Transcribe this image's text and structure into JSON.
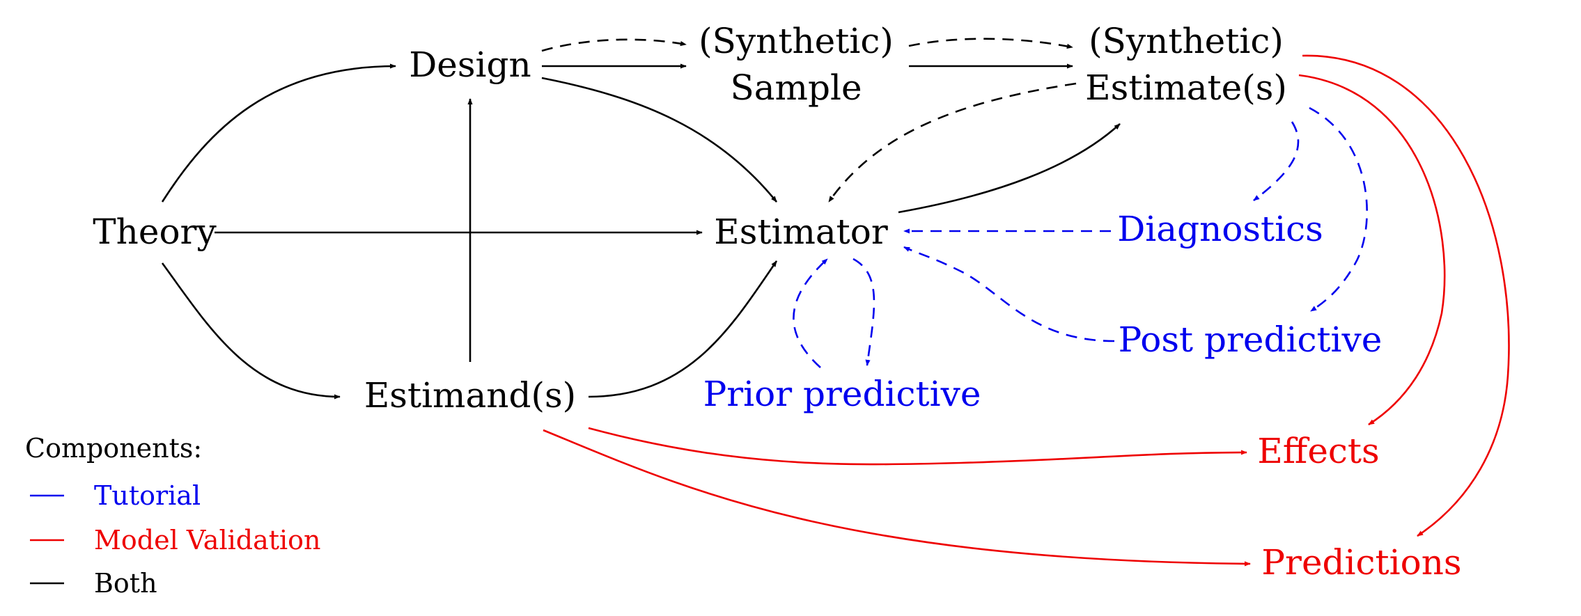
{
  "colors": {
    "both": "#000000",
    "tutorial": "#0000ee",
    "validation": "#ee0000"
  },
  "nodes": {
    "theory": "Theory",
    "design": "Design",
    "estimands": "Estimand(s)",
    "sample_line1": "(Synthetic)",
    "sample_line2": "Sample",
    "estimates_line1": "(Synthetic)",
    "estimates_line2": "Estimate(s)",
    "estimator": "Estimator",
    "diagnostics": "Diagnostics",
    "post_predictive": "Post predictive",
    "prior_predictive": "Prior predictive",
    "effects": "Effects",
    "predictions": "Predictions"
  },
  "legend": {
    "title": "Components:",
    "items": [
      {
        "label": "Tutorial",
        "color": "#0000ee"
      },
      {
        "label": "Model Validation",
        "color": "#ee0000"
      },
      {
        "label": "Both",
        "color": "#000000"
      }
    ]
  }
}
